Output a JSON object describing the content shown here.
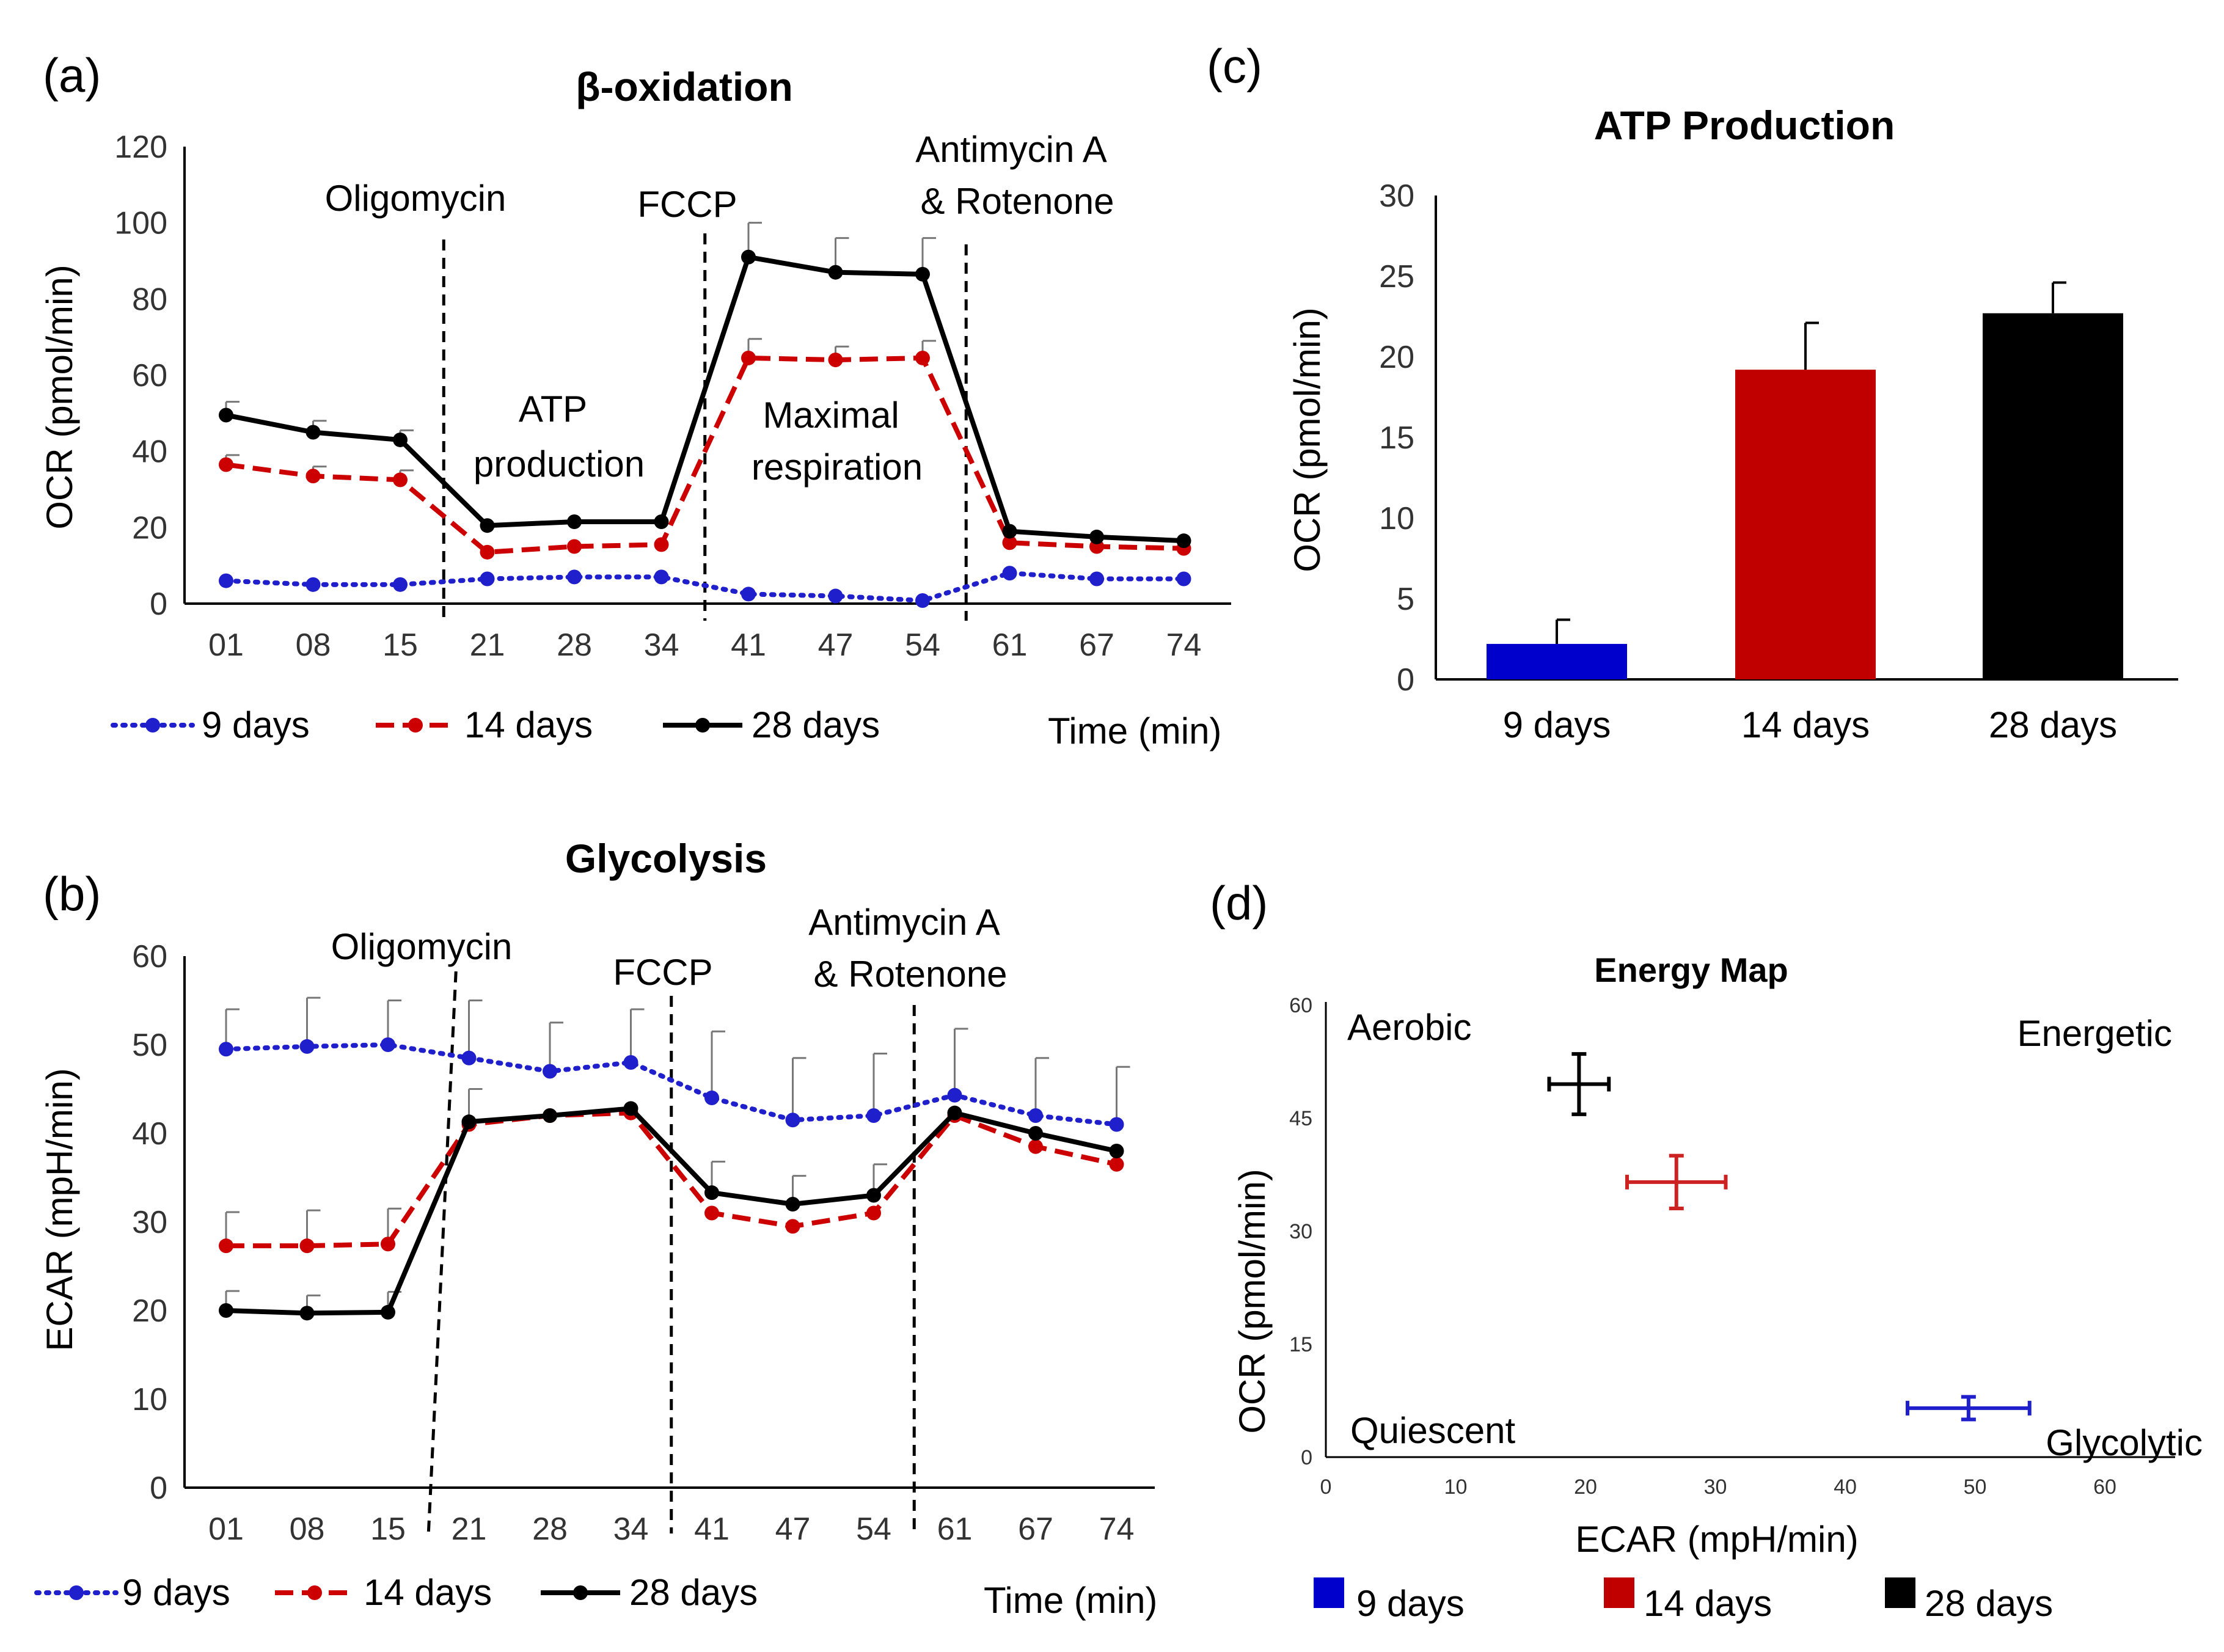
{
  "panels": {
    "a": {
      "letter": "(a)",
      "legend_time_label": "Time (min)",
      "annotations": {
        "oligomycin": "Oligomycin",
        "fccp": "FCCP",
        "antimycin_1": "Antimycin A",
        "antimycin_2": "& Rotenone",
        "atp_1": "ATP",
        "atp_2": "production",
        "max_1": "Maximal",
        "max_2": "respiration"
      }
    },
    "b": {
      "letter": "(b)",
      "legend_time_label": "Time (min)",
      "annotations": {
        "oligomycin": "Oligomycin",
        "fccp": "FCCP",
        "antimycin_1": "Antimycin A",
        "antimycin_2": "& Rotenone"
      }
    },
    "c": {
      "letter": "(c)"
    },
    "d": {
      "letter": "(d)",
      "quadrants": {
        "aerobic": "Aerobic",
        "energetic": "Energetic",
        "quiescent": "Quiescent",
        "glycolytic": "Glycolytic"
      }
    }
  },
  "chart_data": [
    {
      "type": "line",
      "title": "β-oxidation",
      "xlabel": "Time (min)",
      "ylabel": "OCR (pmol/min)",
      "categories": [
        "01",
        "08",
        "15",
        "21",
        "28",
        "34",
        "41",
        "47",
        "54",
        "61",
        "67",
        "74"
      ],
      "ylim": [
        0,
        120
      ],
      "yticks": [
        0,
        20,
        40,
        60,
        80,
        100,
        120
      ],
      "series": [
        {
          "name": "9 days",
          "color": "#1f1fcc",
          "style": "dotted",
          "values": [
            6,
            5,
            5,
            6.5,
            7,
            7,
            2.5,
            2,
            0.8,
            8,
            6.5,
            6.5
          ],
          "errors": [
            0,
            0,
            0,
            0,
            0,
            0,
            0,
            0,
            0,
            0,
            0,
            0
          ]
        },
        {
          "name": "14 days",
          "color": "#cc0000",
          "style": "dashed",
          "values": [
            36.5,
            33.5,
            32.5,
            13.5,
            15,
            15.5,
            64.5,
            64,
            64.5,
            16,
            15,
            14.5
          ],
          "errors": [
            2.5,
            2.5,
            2.5,
            0,
            0,
            0,
            5,
            3.5,
            4.5,
            0,
            0,
            0
          ]
        },
        {
          "name": "28 days",
          "color": "#000000",
          "style": "solid",
          "values": [
            49.5,
            45,
            43,
            20.5,
            21.5,
            21.5,
            91,
            87,
            86.5,
            19,
            17.5,
            16.5
          ],
          "errors": [
            3.5,
            3,
            2.5,
            0,
            0,
            0,
            9,
            9,
            9.5,
            0,
            0,
            0
          ]
        }
      ],
      "vlines_after_index": [
        2,
        5,
        8
      ]
    },
    {
      "type": "line",
      "title": "Glycolysis",
      "xlabel": "Time (min)",
      "ylabel": "ECAR (mpH/min)",
      "categories": [
        "01",
        "08",
        "15",
        "21",
        "28",
        "34",
        "41",
        "47",
        "54",
        "61",
        "67",
        "74"
      ],
      "ylim": [
        0,
        60
      ],
      "yticks": [
        0,
        10,
        20,
        30,
        40,
        50,
        60
      ],
      "series": [
        {
          "name": "9 days",
          "color": "#1f1fcc",
          "style": "dotted",
          "values": [
            49.5,
            49.8,
            50,
            48.5,
            47,
            48,
            44,
            41.5,
            42,
            44.3,
            42,
            41
          ],
          "errors": [
            4.5,
            5.5,
            5,
            6.5,
            5.5,
            6,
            7.5,
            7,
            7,
            7.5,
            6.5,
            6.5
          ]
        },
        {
          "name": "14 days",
          "color": "#cc0000",
          "style": "dashed",
          "values": [
            27.3,
            27.3,
            27.5,
            41,
            42,
            42.3,
            31,
            29.5,
            31,
            42,
            38.5,
            36.5
          ],
          "errors": [
            3.8,
            4,
            4,
            4,
            0,
            0,
            0,
            0,
            0,
            0,
            0,
            0
          ]
        },
        {
          "name": "28 days",
          "color": "#000000",
          "style": "solid",
          "values": [
            20,
            19.7,
            19.8,
            41.3,
            42,
            42.8,
            33.3,
            32,
            33,
            42.3,
            40,
            38
          ],
          "errors": [
            2.2,
            2,
            2.3,
            0,
            0,
            0,
            3.5,
            3.2,
            3.5,
            0,
            0,
            0
          ]
        }
      ],
      "vlines_after_index": [
        2,
        5,
        8
      ]
    },
    {
      "type": "bar",
      "title": "ATP Production",
      "xlabel": "",
      "ylabel": "OCR (pmol/min)",
      "categories": [
        "9 days",
        "14 days",
        "28 days"
      ],
      "values": [
        2.2,
        19.2,
        22.7
      ],
      "errors": [
        1.5,
        2.9,
        1.9
      ],
      "colors": [
        "#0000cc",
        "#c00000",
        "#000000"
      ],
      "ylim": [
        0,
        30
      ],
      "yticks": [
        0,
        5,
        10,
        15,
        20,
        25,
        30
      ]
    },
    {
      "type": "scatter",
      "title": "Energy Map",
      "xlabel": "ECAR (mpH/min)",
      "ylabel": "OCR (pmol/min)",
      "xlim": [
        0,
        60
      ],
      "ylim": [
        0,
        60
      ],
      "xticks": [
        0,
        10,
        20,
        30,
        40,
        50,
        60
      ],
      "yticks": [
        0,
        15,
        30,
        45,
        60
      ],
      "series": [
        {
          "name": "9 days",
          "color": "#1f1fcc",
          "x": 49.5,
          "y": 6.5,
          "xerr": 4.7,
          "yerr": 1.5
        },
        {
          "name": "14 days",
          "color": "#cc2222",
          "x": 27,
          "y": 36.5,
          "xerr": 3.8,
          "yerr": 3.5
        },
        {
          "name": "28 days",
          "color": "#000000",
          "x": 19.5,
          "y": 49.5,
          "xerr": 2.3,
          "yerr": 4
        }
      ]
    }
  ]
}
